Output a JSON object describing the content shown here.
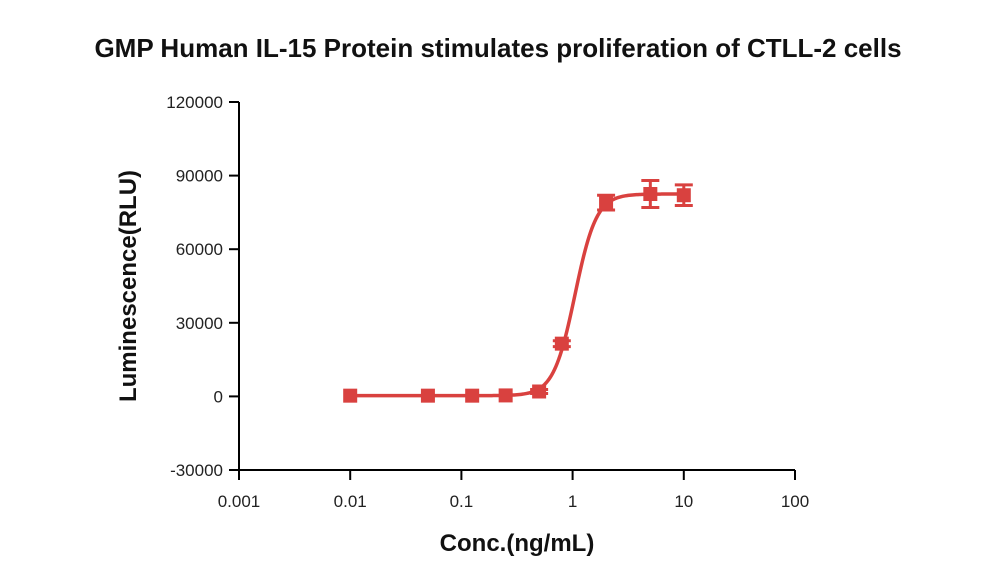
{
  "chart_data": {
    "type": "scatter",
    "title": "GMP Human IL-15 Protein stimulates proliferation of CTLL-2 cells",
    "xlabel": "Conc.(ng/mL)",
    "ylabel": "Luminescence(RLU)",
    "x_scale": "log",
    "xlim": [
      0.001,
      100
    ],
    "ylim": [
      -30000,
      120000
    ],
    "x_ticks": [
      0.001,
      0.01,
      0.1,
      1,
      10,
      100
    ],
    "x_tick_labels": [
      "0.001",
      "0.01",
      "0.1",
      "1",
      "10",
      "100"
    ],
    "y_ticks": [
      -30000,
      0,
      30000,
      60000,
      90000,
      120000
    ],
    "y_tick_labels": [
      "-30000",
      "0",
      "30000",
      "60000",
      "90000",
      "120000"
    ],
    "grid": false,
    "color": "#d9413f",
    "series": [
      {
        "x": [
          0.01,
          0.05,
          0.125,
          0.25,
          0.5,
          0.8,
          2,
          5,
          10
        ],
        "y": [
          300,
          300,
          300,
          400,
          2000,
          21500,
          79000,
          82500,
          82000
        ],
        "error": [
          0,
          0,
          0,
          0,
          800,
          1200,
          3000,
          5500,
          4200
        ]
      }
    ],
    "fit_curve": {
      "type": "4PL",
      "bottom": 300,
      "top": 82500,
      "ec50": 1.05,
      "hill": 4.5
    }
  }
}
